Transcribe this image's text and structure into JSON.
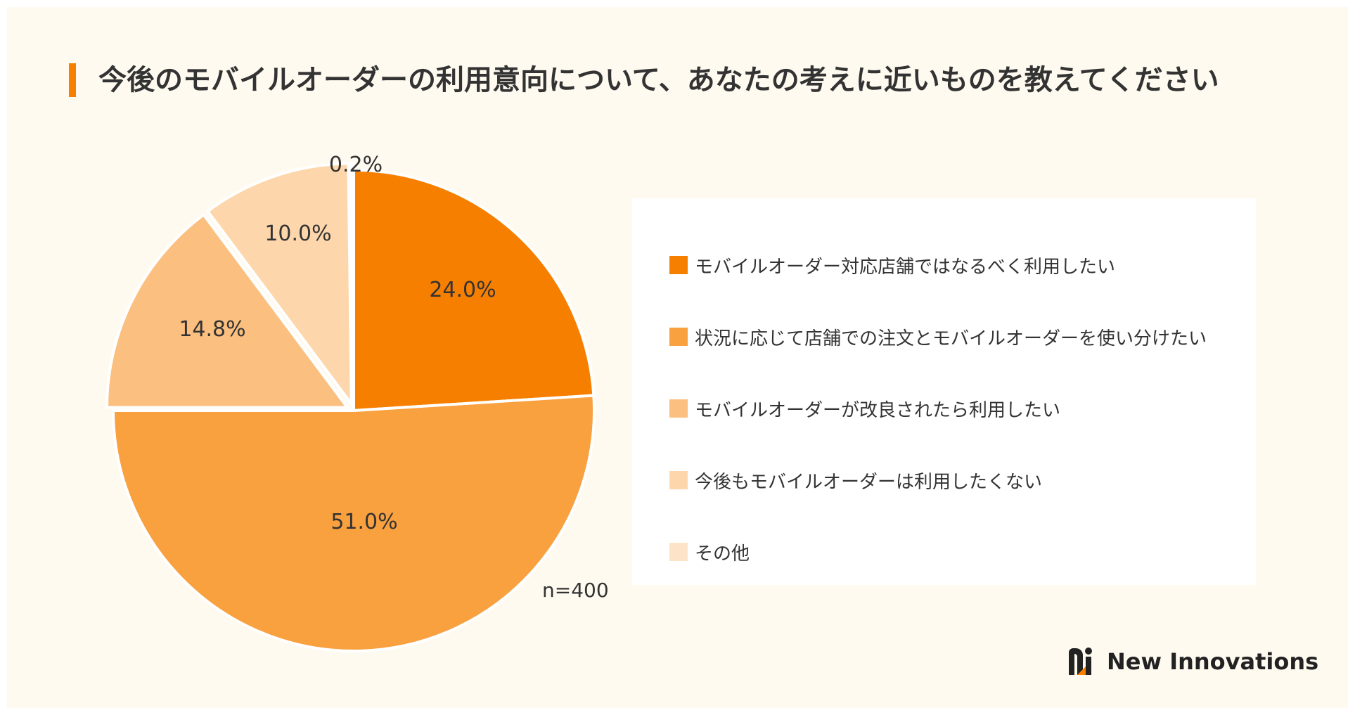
{
  "title": "今後のモバイルオーダーの利用意向について、あなたの考えに近いものを教えてください",
  "sample_size": "n=400",
  "brand": "New Innovations",
  "chart_data": {
    "type": "pie",
    "title": "今後のモバイルオーダーの利用意向について、あなたの考えに近いものを教えてください",
    "unit": "%",
    "legend_position": "right",
    "slices": [
      {
        "label": "モバイルオーダー対応店舗ではなるべく利用したい",
        "value": 24.0,
        "value_label": "24.0%",
        "color": "#f77f00",
        "exploded": false
      },
      {
        "label": "状況に応じて店舗での注文とモバイルオーダーを使い分けたい",
        "value": 51.0,
        "value_label": "51.0%",
        "color": "#f9a03f",
        "exploded": false
      },
      {
        "label": "モバイルオーダーが改良されたら利用したい",
        "value": 14.8,
        "value_label": "14.8%",
        "color": "#fbbf7f",
        "exploded": true
      },
      {
        "label": "今後もモバイルオーダーは利用したくない",
        "value": 10.0,
        "value_label": "10.0%",
        "color": "#fdd7ab",
        "exploded": true
      },
      {
        "label": "その他",
        "value": 0.2,
        "value_label": "0.2%",
        "color": "#fde4c8",
        "exploded": true
      }
    ]
  }
}
